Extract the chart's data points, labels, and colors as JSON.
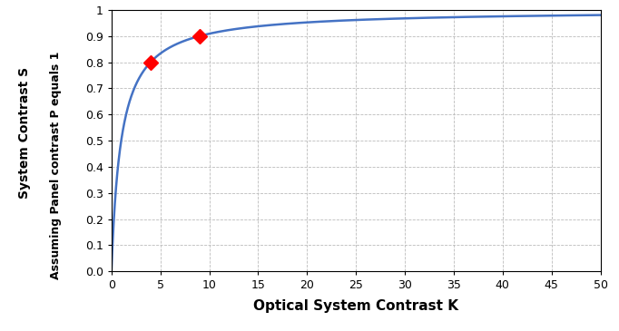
{
  "xlabel": "Optical System Contrast K",
  "ylabel_line1": "System Contrast S",
  "ylabel_line2": "Assuming Panel contrast P equals 1",
  "xlim": [
    0,
    50
  ],
  "ylim": [
    0,
    1.0
  ],
  "xticks": [
    0,
    5,
    10,
    15,
    20,
    25,
    30,
    35,
    40,
    45,
    50
  ],
  "yticks": [
    0,
    0.1,
    0.2,
    0.3,
    0.4,
    0.5,
    0.6,
    0.7,
    0.8,
    0.9,
    1.0
  ],
  "curve_color": "#4472C4",
  "curve_linewidth": 1.8,
  "marker_color": "#FF0000",
  "marker_points": [
    [
      4,
      0.8
    ],
    [
      9,
      0.9
    ]
  ],
  "marker_size": 8,
  "background_color": "#FFFFFF",
  "grid_color": "#BBBBBB",
  "xlabel_fontsize": 11,
  "ylabel_fontsize": 9,
  "tick_fontsize": 9,
  "ylabel1_fontsize": 10,
  "ylabel2_fontsize": 9
}
